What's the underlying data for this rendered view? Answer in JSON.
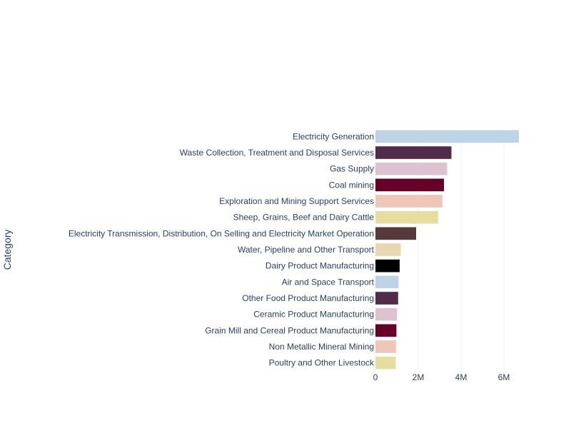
{
  "chart_data": {
    "type": "bar",
    "orientation": "horizontal",
    "ylabel": "Category",
    "xlabel": "",
    "title": "",
    "xlim": [
      0,
      6800000
    ],
    "xticks": [
      {
        "value": 0,
        "label": "0"
      },
      {
        "value": 2000000,
        "label": "2M"
      },
      {
        "value": 4000000,
        "label": "4M"
      },
      {
        "value": 6000000,
        "label": "6M"
      }
    ],
    "grid": true,
    "legend": "none",
    "categories": [
      "Electricity Generation",
      "Waste Collection, Treatment and Disposal Services",
      "Gas Supply",
      "Coal mining",
      "Exploration and Mining Support Services",
      "Sheep, Grains, Beef and Dairy Cattle",
      "Electricity Transmission, Distribution, On Selling and Electricity Market Operation",
      "Water, Pipeline and Other Transport",
      "Dairy Product Manufacturing",
      "Air and Space Transport",
      "Other Food Product Manufacturing",
      "Ceramic Product Manufacturing",
      "Grain Mill and Cereal Product Manufacturing",
      "Non Metallic Mineral Mining",
      "Poultry and Other Livestock"
    ],
    "values": [
      6700000,
      3550000,
      3350000,
      3200000,
      3130000,
      2930000,
      1900000,
      1180000,
      1130000,
      1080000,
      1060000,
      1010000,
      980000,
      960000,
      950000
    ],
    "colors": [
      "#bfd3e6",
      "#522a4a",
      "#dcc3cf",
      "#650029",
      "#f0c6b9",
      "#e6dea0",
      "#56393b",
      "#e8d7b0",
      "#000000",
      "#bfd3e6",
      "#522a4a",
      "#dcc3cf",
      "#650029",
      "#f0c6b9",
      "#e6dea0"
    ]
  }
}
